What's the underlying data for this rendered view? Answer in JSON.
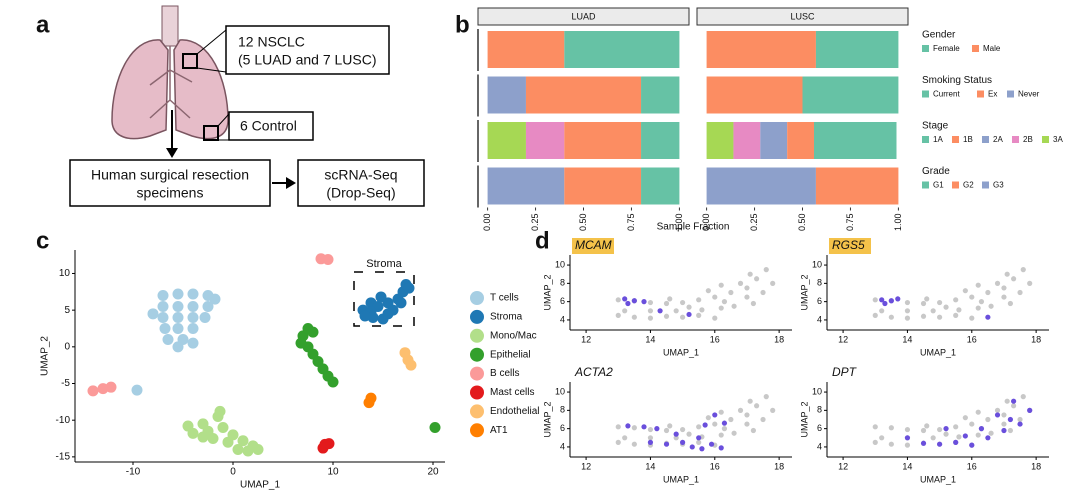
{
  "panel_labels": [
    "a",
    "b",
    "c",
    "d"
  ],
  "diagram": {
    "nsclc": [
      "12 NSCLC",
      "(5 LUAD and 7 LUSC)"
    ],
    "control": "6 Control",
    "specimens": [
      "Human surgical resection",
      "specimens"
    ],
    "sequencing": [
      "scRNA-Seq",
      "(Drop-Seq)"
    ]
  },
  "chart_data": [
    {
      "type": "bar",
      "orientation": "horizontal",
      "stacked": true,
      "facets": [
        "LUAD",
        "LUSC"
      ],
      "xlabel": "Sample Fraction",
      "xlim": [
        -0.05,
        1.05
      ],
      "xticks": [
        {
          "value": 0,
          "label": "0.00"
        },
        {
          "value": 0.25,
          "label": "0.25"
        },
        {
          "value": 0.5,
          "label": "0.50"
        },
        {
          "value": 0.75,
          "label": "0.75"
        },
        {
          "value": 1,
          "label": "1.00"
        }
      ],
      "groups": [
        {
          "name": "Gender",
          "series": [
            {
              "name": "Female",
              "color": "#66c2a5",
              "values": [
                0.6,
                0.43
              ]
            },
            {
              "name": "Male",
              "color": "#fc8d62",
              "values": [
                0.4,
                0.57
              ]
            }
          ]
        },
        {
          "name": "Smoking Status",
          "series": [
            {
              "name": "Current",
              "color": "#66c2a5",
              "values": [
                0.2,
                0.5
              ]
            },
            {
              "name": "Ex",
              "color": "#fc8d62",
              "values": [
                0.6,
                0.5
              ]
            },
            {
              "name": "Never",
              "color": "#8da0cb",
              "values": [
                0.2,
                0
              ]
            }
          ]
        },
        {
          "name": "Stage",
          "series": [
            {
              "name": "1A",
              "color": "#66c2a5",
              "values": [
                0.2,
                0.43
              ]
            },
            {
              "name": "1B",
              "color": "#fc8d62",
              "values": [
                0.4,
                0.14
              ]
            },
            {
              "name": "2A",
              "color": "#8da0cb",
              "values": [
                0,
                0.14
              ]
            },
            {
              "name": "2B",
              "color": "#e78ac3",
              "values": [
                0.2,
                0.14
              ]
            },
            {
              "name": "3A",
              "color": "#a6d854",
              "values": [
                0.2,
                0.14
              ]
            }
          ]
        },
        {
          "name": "Grade",
          "series": [
            {
              "name": "G1",
              "color": "#66c2a5",
              "values": [
                0.2,
                0
              ]
            },
            {
              "name": "G2",
              "color": "#fc8d62",
              "values": [
                0.4,
                0.43
              ]
            },
            {
              "name": "G3",
              "color": "#8da0cb",
              "values": [
                0.4,
                0.57
              ]
            }
          ]
        }
      ]
    },
    {
      "type": "scatter",
      "xlabel": "UMAP_1",
      "ylabel": "UMAP_2",
      "xlim": [
        -15.8,
        21.2
      ],
      "ylim": [
        -15.7,
        13.2
      ],
      "xticks": [
        -10,
        0,
        10,
        20
      ],
      "yticks": [
        -15,
        -10,
        -5,
        0,
        5,
        10
      ],
      "annotation": "Stroma",
      "series": [
        {
          "name": "T cells",
          "color": "#a6cee3",
          "x": [
            -7,
            -5.5,
            -4,
            -2.5,
            -1.8,
            -7,
            -5.5,
            -4,
            -2.5,
            -7,
            -5.5,
            -4,
            -2.8,
            -6.8,
            -5.5,
            -4,
            -6.5,
            -5,
            -4,
            -5.5,
            -8,
            -9.6
          ],
          "y": [
            7,
            7.2,
            7.2,
            7,
            6.5,
            5.5,
            5.5,
            5.5,
            5.5,
            4,
            4,
            4,
            4,
            2.5,
            2.5,
            2.5,
            1,
            1,
            0.5,
            0,
            4.5,
            -5.9
          ]
        },
        {
          "name": "Stroma",
          "color": "#1f78b4",
          "x": [
            13,
            13.8,
            14,
            15,
            14.5,
            15.5,
            16,
            16.5,
            17,
            17.3,
            15.5,
            13.8,
            14.8,
            16.8,
            17.6,
            13.2
          ],
          "y": [
            5,
            6,
            4,
            3.8,
            5.5,
            6,
            5,
            6.5,
            7.5,
            8.5,
            4.5,
            4.8,
            6.8,
            6,
            8,
            4.2
          ]
        },
        {
          "name": "Mono/Mac",
          "color": "#b2df8a",
          "x": [
            -4.5,
            -3,
            -1.5,
            -1.3,
            -4,
            -2.5,
            -1,
            0,
            1,
            2,
            2.5,
            0.5,
            -0.5,
            1.5,
            -3,
            -2
          ],
          "y": [
            -10.8,
            -10.5,
            -9.5,
            -8.8,
            -11.8,
            -11.5,
            -11,
            -12,
            -12.8,
            -13.5,
            -14,
            -14,
            -13,
            -14.2,
            -12.3,
            -12.5
          ]
        },
        {
          "name": "Epithelial",
          "color": "#33a02c",
          "x": [
            7,
            7.5,
            7.5,
            8,
            8.5,
            9,
            9.5,
            10,
            6.8,
            8,
            20.2
          ],
          "y": [
            1.5,
            2.5,
            0,
            -1,
            -2,
            -3,
            -4,
            -4.8,
            0.5,
            2,
            -11
          ]
        },
        {
          "name": "B cells",
          "color": "#fb9a99",
          "x": [
            8.8,
            9.5,
            -14,
            -13,
            -12.2
          ],
          "y": [
            12,
            11.9,
            -6,
            -5.7,
            -5.5
          ]
        },
        {
          "name": "Mast cells",
          "color": "#e31a1c",
          "x": [
            9.2,
            9,
            9.6
          ],
          "y": [
            -13.3,
            -13.8,
            -13.2
          ]
        },
        {
          "name": "Endothelial",
          "color": "#fdbf6f",
          "x": [
            17.2,
            17.5,
            17.8
          ],
          "y": [
            -0.8,
            -1.8,
            -2.5
          ]
        },
        {
          "name": "AT1",
          "color": "#ff7f00",
          "x": [
            13.8,
            13.6
          ],
          "y": [
            -7,
            -7.6
          ]
        }
      ]
    },
    {
      "type": "scatter",
      "xlabel": "UMAP_1",
      "ylabel": "UMAP_2",
      "xlim": [
        11.5,
        18.4
      ],
      "ylim": [
        2.9,
        11.1
      ],
      "xticks": [
        12,
        14,
        16,
        18
      ],
      "yticks": [
        4,
        6,
        8,
        10
      ],
      "background": {
        "color": "#c8c8c8",
        "x": [
          13,
          13.5,
          14,
          14.5,
          15,
          15.5,
          16,
          13.2,
          14,
          14.8,
          15.6,
          16.2,
          13,
          13.5,
          14,
          14.5,
          15,
          15.5,
          16,
          16.5,
          17,
          17.3,
          17.6,
          16.8,
          16.3,
          17,
          17.5,
          17.8,
          16.6,
          17.2,
          15.8,
          16.2,
          17.1,
          14.6,
          15.2
        ],
        "y": [
          4.5,
          4.3,
          4.2,
          4.4,
          4.3,
          4.5,
          4.2,
          5,
          5,
          5,
          5.1,
          5.3,
          6.2,
          6.1,
          5.9,
          5.8,
          5.9,
          6.2,
          6.5,
          7,
          7.5,
          8.5,
          9.5,
          8,
          6,
          6.5,
          7,
          8,
          5.5,
          5.8,
          7.2,
          7.8,
          9,
          6.3,
          5.4
        ]
      },
      "panels": [
        {
          "title": "MCAM",
          "highlight": true,
          "color": "#6a4fdc",
          "x": [
            13.2,
            13.5,
            13.8,
            13.3,
            14.3,
            15.2
          ],
          "y": [
            6.3,
            6.1,
            6,
            5.8,
            5,
            4.6
          ]
        },
        {
          "title": "RGS5",
          "highlight": true,
          "color": "#6a4fdc",
          "x": [
            13.2,
            13.5,
            13.3,
            13.7,
            16.5
          ],
          "y": [
            6.2,
            6.1,
            5.8,
            6.3,
            4.3
          ]
        },
        {
          "title": "ACTA2",
          "highlight": false,
          "color": "#6a4fdc",
          "x": [
            13.3,
            13.8,
            14.2,
            14,
            14.5,
            15,
            15.3,
            15.6,
            15.9,
            16.2,
            15.5,
            14.8,
            16.3,
            15.7,
            16
          ],
          "y": [
            6.3,
            6.2,
            6,
            4.5,
            4.3,
            4.5,
            4,
            3.8,
            4.3,
            3.9,
            5,
            5.4,
            6.6,
            6.4,
            7.5
          ]
        },
        {
          "title": "DPT",
          "highlight": false,
          "color": "#6a4fdc",
          "x": [
            14.5,
            15,
            15.5,
            16,
            16.5,
            17,
            17.5,
            17.8,
            17.3,
            16.8,
            15.8,
            16.3,
            17.2,
            14,
            15.2
          ],
          "y": [
            4.4,
            4.3,
            4.5,
            4.2,
            5,
            5.8,
            6.5,
            8,
            9,
            7.5,
            5.2,
            6,
            7,
            5,
            6
          ]
        }
      ]
    }
  ]
}
